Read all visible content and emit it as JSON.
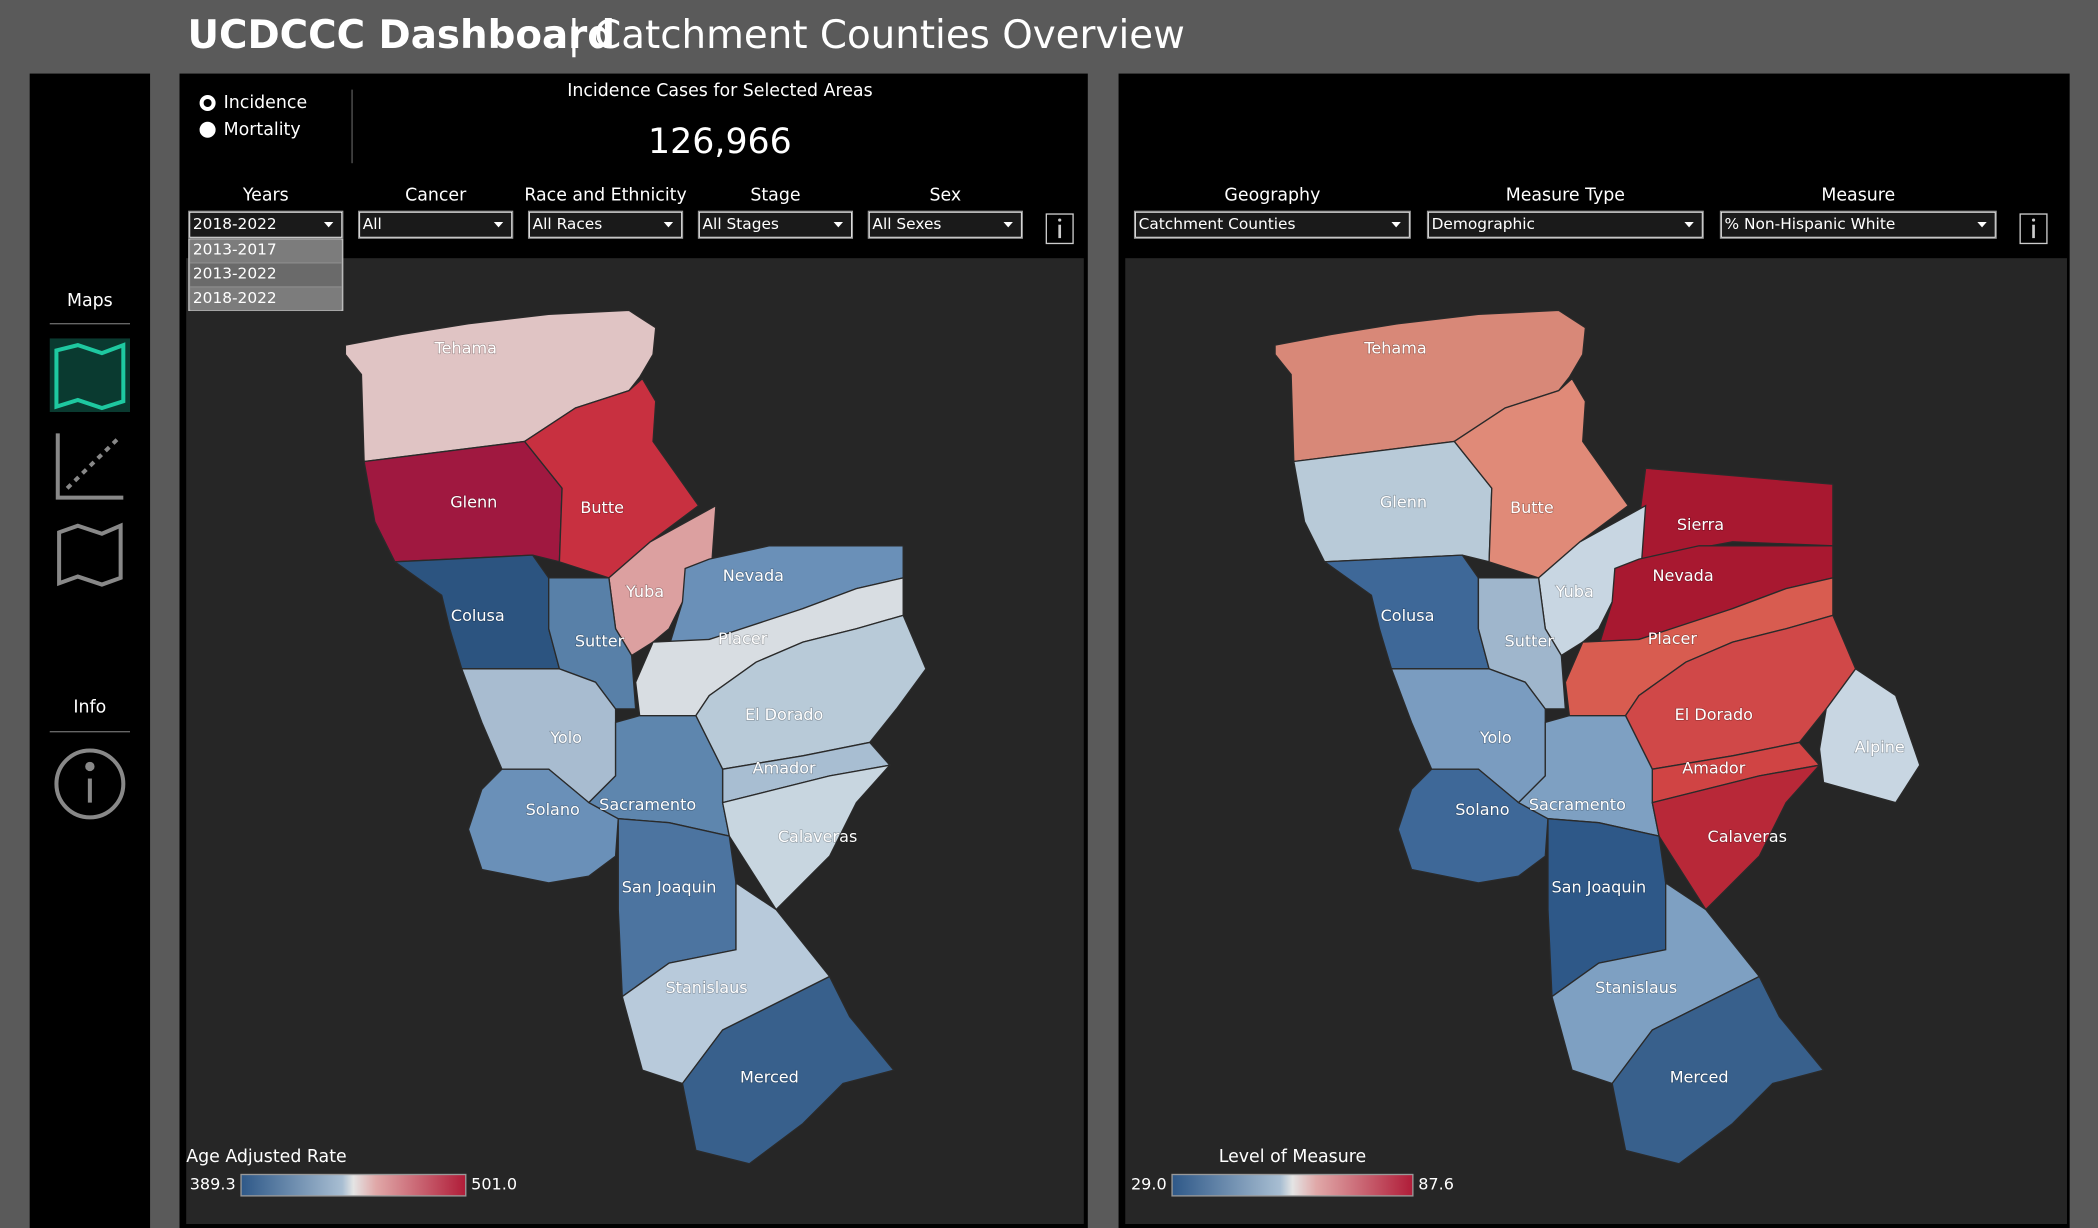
{
  "header": {
    "title": "UCDCCC Dashboard",
    "separator": "|",
    "subtitle": "Catchment Counties Overview"
  },
  "sidebar": {
    "maps_label": "Maps",
    "info_label": "Info"
  },
  "left_panel": {
    "radio": [
      "Incidence",
      "Mortality"
    ],
    "cases_label": "Incidence Cases for Selected Areas",
    "cases_value": "126,966",
    "filters": [
      {
        "label": "Years",
        "value": "2018-2022"
      },
      {
        "label": "Cancer",
        "value": "All"
      },
      {
        "label": "Race and Ethnicity",
        "value": "All Races"
      },
      {
        "label": "Stage",
        "value": "All Stages"
      },
      {
        "label": "Sex",
        "value": "All Sexes"
      }
    ],
    "dropdown_options": [
      "2013-2017",
      "2013-2022",
      "2018-2022"
    ],
    "counties": [
      "Tehama",
      "Glenn",
      "Butte",
      "Yuba",
      "Nevada",
      "Colusa",
      "Sutter",
      "Placer",
      "El Dorado",
      "Yolo",
      "Amador",
      "Solano",
      "Sacramento",
      "Calaveras",
      "San Joaquin",
      "Stanislaus",
      "Merced"
    ],
    "legend": {
      "title": "Age Adjusted Rate",
      "min": "389.3",
      "max": "501.0"
    }
  },
  "right_panel": {
    "filters": [
      {
        "label": "Geography",
        "value": "Catchment Counties"
      },
      {
        "label": "Measure Type",
        "value": "Demographic"
      },
      {
        "label": "Measure",
        "value": "% Non-Hispanic White"
      }
    ],
    "counties": [
      "Tehama",
      "Glenn",
      "Butte",
      "Sierra",
      "Yuba",
      "Nevada",
      "Colusa",
      "Sutter",
      "Placer",
      "El Dorado",
      "Yolo",
      "Amador",
      "Alpine",
      "Solano",
      "Sacramento",
      "Calaveras",
      "San Joaquin",
      "Stanislaus",
      "Merced"
    ],
    "legend": {
      "title": "Level of Measure",
      "min": "29.0",
      "max": "87.6"
    }
  }
}
